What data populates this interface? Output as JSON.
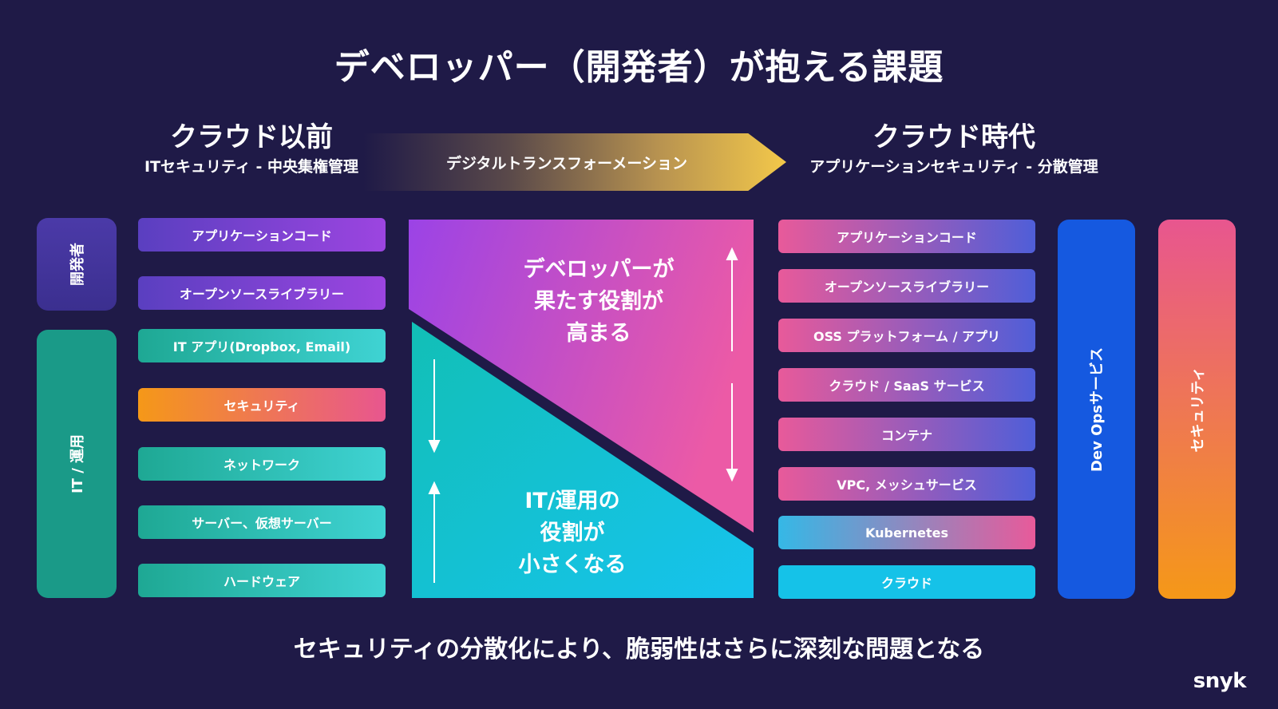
{
  "title": "デベロッパー（開発者）が抱える課題",
  "before": {
    "heading": "クラウド以前",
    "subheading": "ITセキュリティ - 中央集権管理"
  },
  "after": {
    "heading": "クラウド時代",
    "subheading": "アプリケーションセキュリティ - 分散管理"
  },
  "transition_label": "デジタルトランスフォーメーション",
  "left_side": {
    "developer_label": "開発者",
    "it_ops_label": "IT / 運用"
  },
  "left_items": [
    "アプリケーションコード",
    "オープンソースライブラリー",
    "IT アプリ(Dropbox, Email)",
    "セキュリティ",
    "ネットワーク",
    "サーバー、仮想サーバー",
    "ハードウェア"
  ],
  "center": {
    "upper_text": [
      "デベロッパーが",
      "果たす役割が",
      "高まる"
    ],
    "lower_text": [
      "IT/運用の",
      "役割が",
      "小さくなる"
    ]
  },
  "right_items": [
    "アプリケーションコード",
    "オープンソースライブラリー",
    "OSS プラットフォーム / アプリ",
    "クラウド / SaaS サービス",
    "コンテナ",
    "VPC, メッシュサービス",
    "Kubernetes",
    "クラウド"
  ],
  "right_side": {
    "devops_label": "Dev Opsサービス",
    "security_label": "セキュリティ"
  },
  "footer": "セキュリティの分散化により、脆弱性はさらに深刻な問題となる",
  "logo": "snyk",
  "colors": {
    "background": "#1f1a47",
    "teal": "#2bb5ad",
    "purple": "#6b3fc9",
    "pink": "#e85a9a",
    "blue": "#1559e0",
    "orange": "#f5a020",
    "cyan": "#15c2e8"
  }
}
